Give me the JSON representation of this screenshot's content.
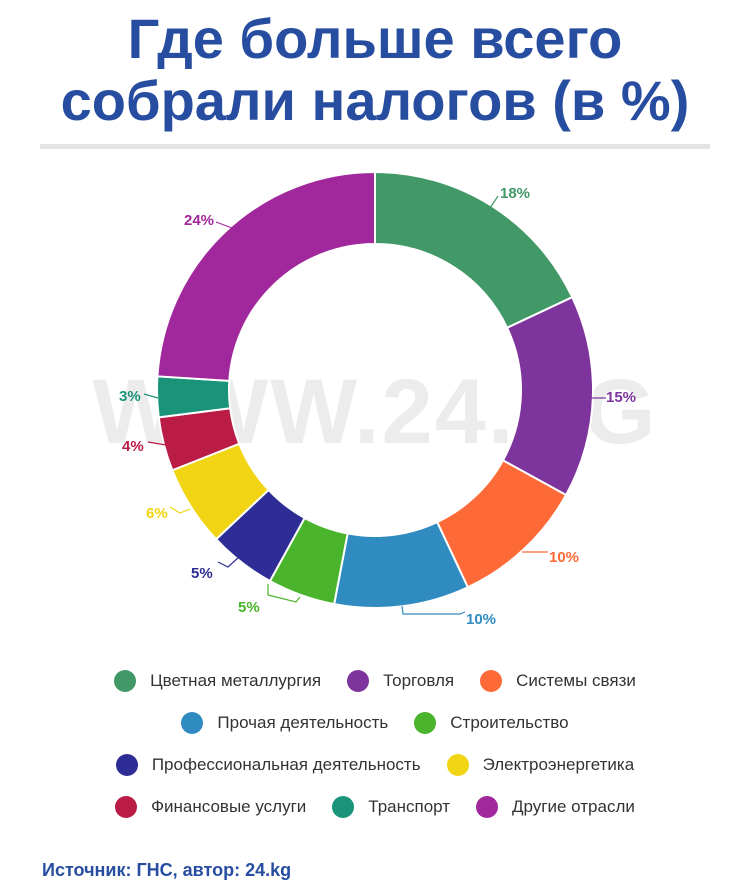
{
  "title_line1": "Где больше всего",
  "title_line2": "собрали налогов (в %)",
  "watermark": "WWW.24.KG",
  "source": "Источник: ГНС, автор: 24.kg",
  "chart_data": {
    "type": "pie",
    "donut": true,
    "title": "Где больше всего собрали налогов (в %)",
    "categories": [
      "Цветная металлургия",
      "Торговля",
      "Системы связи",
      "Прочая деятельность",
      "Строительство",
      "Профессиональная деятельность",
      "Электроэнергетика",
      "Финансовые услуги",
      "Транспорт",
      "Другие отрасли"
    ],
    "values": [
      18,
      15,
      10,
      10,
      5,
      5,
      6,
      4,
      3,
      24
    ],
    "labels": [
      "18%",
      "15%",
      "10%",
      "10%",
      "5%",
      "5%",
      "6%",
      "4%",
      "3%",
      "24%"
    ],
    "colors": [
      "#429968",
      "#7d349c",
      "#fe6a37",
      "#308bc1",
      "#4ab52c",
      "#2e2d95",
      "#f1d514",
      "#bb1c45",
      "#1a9479",
      "#a0279c"
    ],
    "legend": "bottom"
  }
}
